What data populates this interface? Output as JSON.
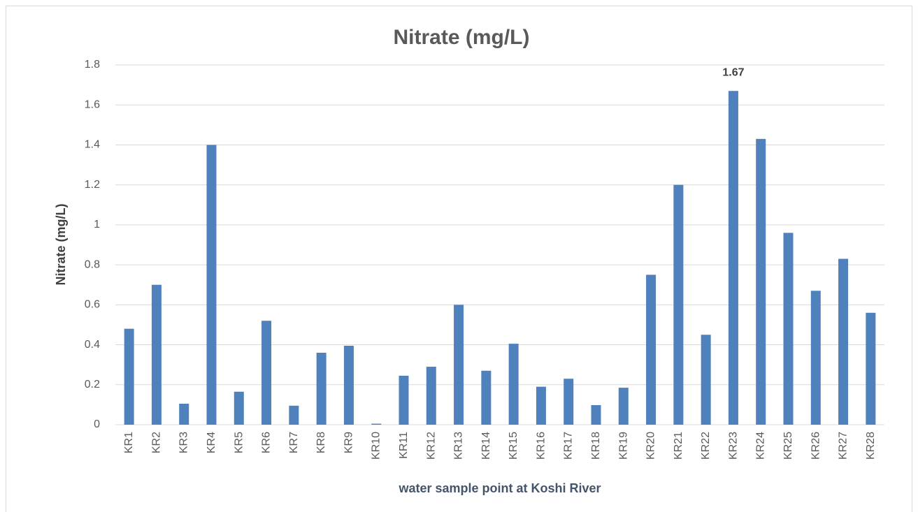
{
  "chart_data": {
    "type": "bar",
    "title": "Nitrate (mg/L)",
    "x_label": "water sample point at Koshi River",
    "y_label": "Nitrate (mg/L)",
    "categories": [
      "KR1",
      "KR2",
      "KR3",
      "KR4",
      "KR5",
      "KR6",
      "KR7",
      "KR8",
      "KR9",
      "KR10",
      "KR11",
      "KR12",
      "KR13",
      "KR14",
      "KR15",
      "KR16",
      "KR17",
      "KR18",
      "KR19",
      "KR20",
      "KR21",
      "KR22",
      "KR23",
      "KR24",
      "KR25",
      "KR26",
      "KR27",
      "KR28"
    ],
    "values": [
      0.48,
      0.7,
      0.105,
      1.4,
      0.165,
      0.52,
      0.095,
      0.36,
      0.395,
      0.005,
      0.245,
      0.29,
      0.6,
      0.27,
      0.405,
      0.19,
      0.23,
      0.098,
      0.185,
      0.75,
      1.2,
      0.45,
      1.67,
      1.43,
      0.96,
      0.67,
      0.83,
      0.56
    ],
    "value_labels": [
      null,
      null,
      null,
      null,
      null,
      null,
      null,
      null,
      null,
      null,
      null,
      null,
      null,
      null,
      null,
      null,
      null,
      null,
      null,
      null,
      null,
      null,
      "1.67",
      null,
      null,
      null,
      null,
      null
    ],
    "color": "#4f81bd",
    "ylim": [
      0,
      1.8
    ],
    "yticks": [
      0,
      0.2,
      0.4,
      0.6,
      0.8,
      1,
      1.2,
      1.4,
      1.6,
      1.8
    ],
    "grid": true
  }
}
